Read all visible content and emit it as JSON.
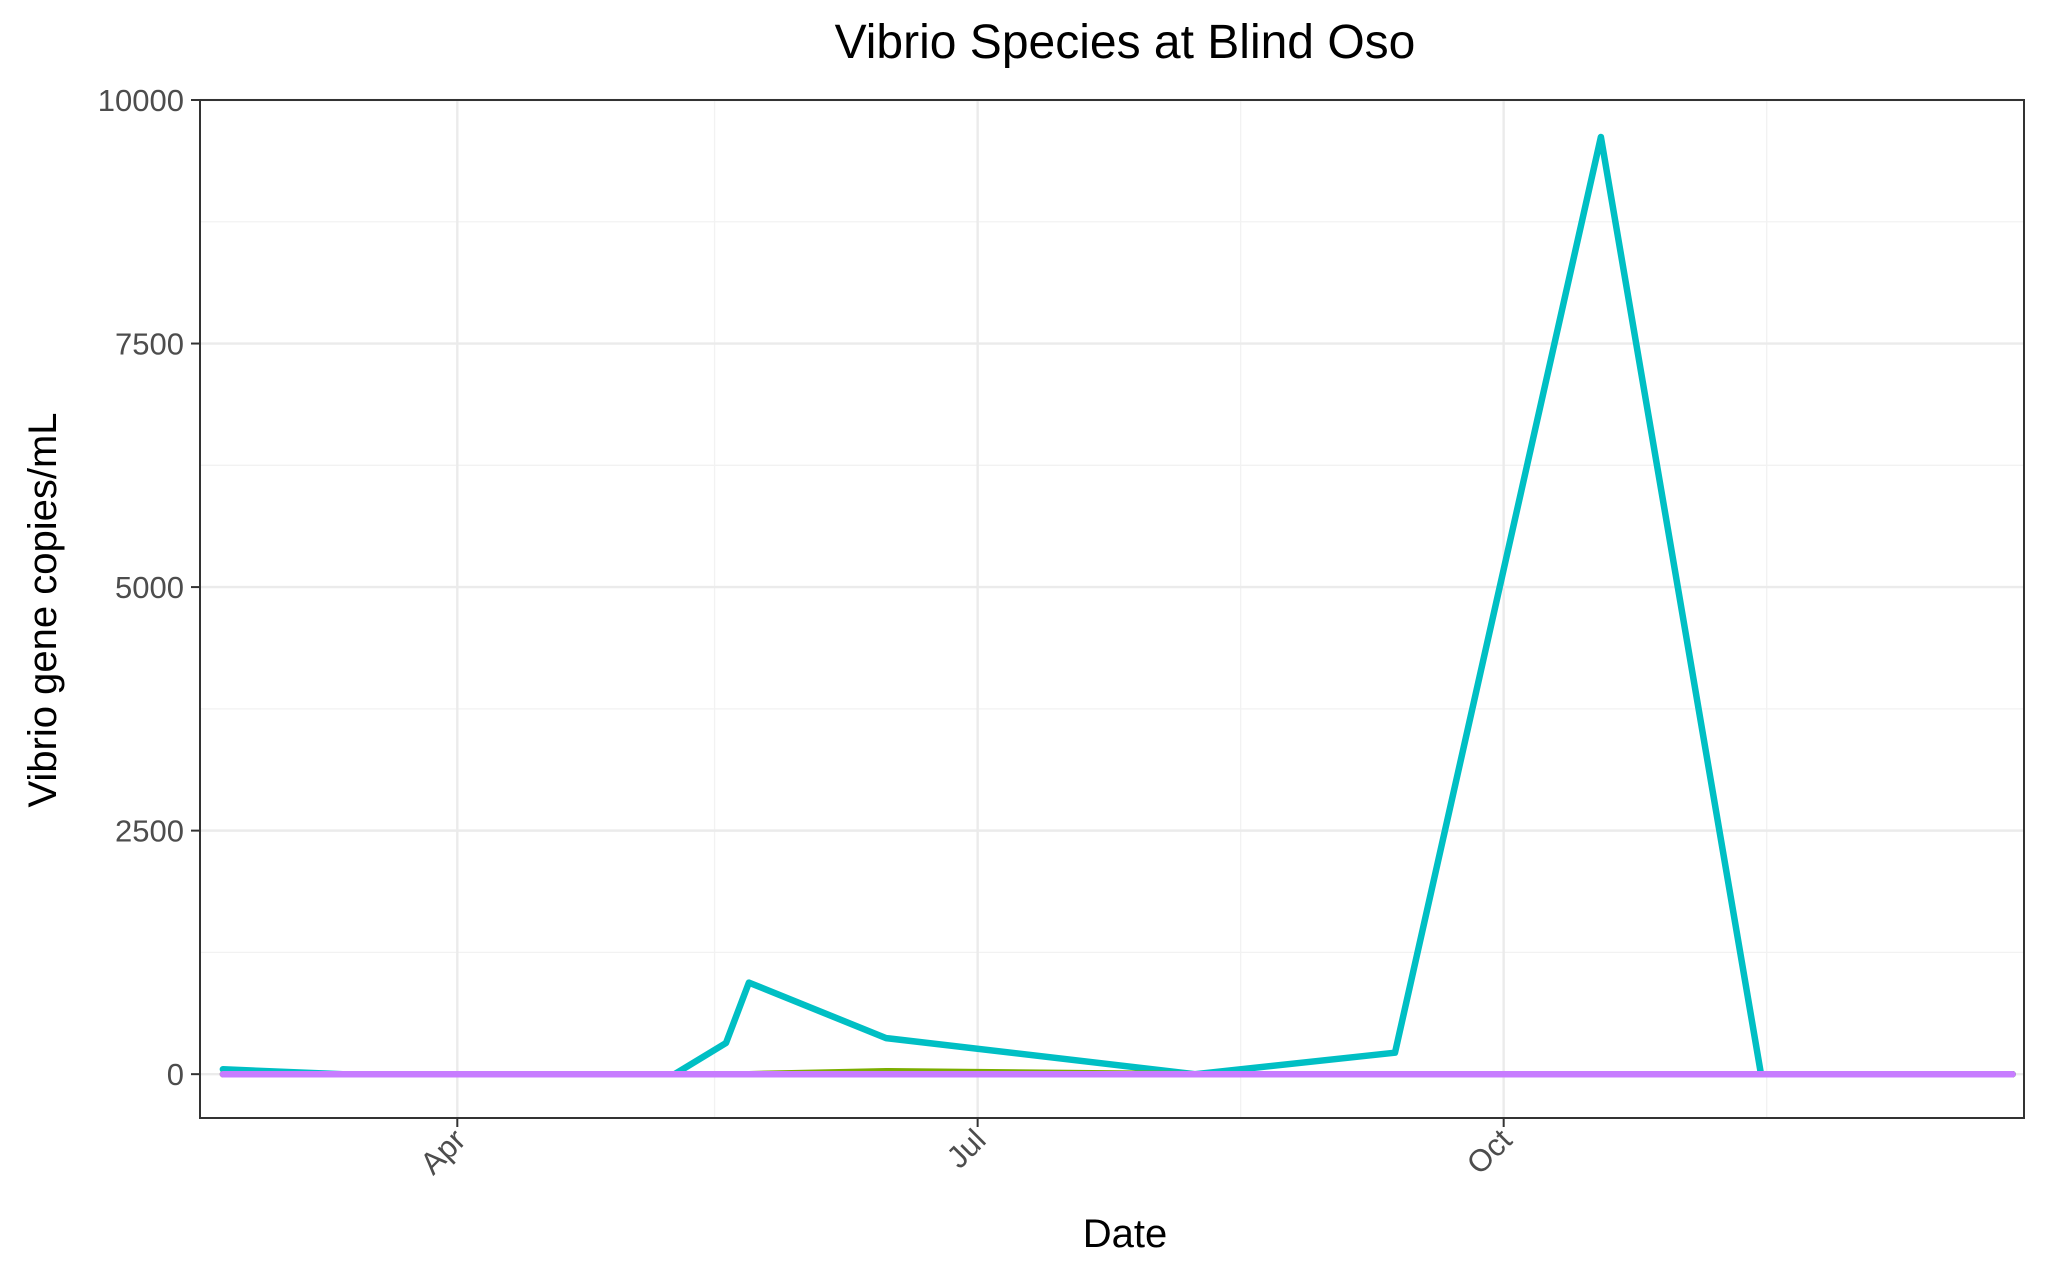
{
  "chart_data": {
    "type": "line",
    "title": "Vibrio Species at Blind Oso",
    "xlabel": "Date",
    "ylabel": "Vibrio gene copies/mL",
    "x_type": "date",
    "xlim": [
      "2023-02-15",
      "2023-12-31"
    ],
    "ylim": [
      -450,
      10000
    ],
    "x_ticks": [
      {
        "date": "2023-04-01",
        "label": "Apr"
      },
      {
        "date": "2023-07-01",
        "label": "Jul"
      },
      {
        "date": "2023-10-01",
        "label": "Oct"
      }
    ],
    "x_minor": [
      "2023-02-15",
      "2023-05-16",
      "2023-08-16",
      "2023-11-16"
    ],
    "y_ticks": [
      0,
      2500,
      5000,
      7500,
      10000
    ],
    "y_tick_labels": [
      "0",
      "2500",
      "5000",
      "7500",
      "10000"
    ],
    "y_minor": [
      1250,
      3750,
      6250,
      8750
    ],
    "grid": true,
    "legend": "none",
    "series": [
      {
        "color": "#00BFC4",
        "points": [
          {
            "x": "2023-02-19",
            "y": 50
          },
          {
            "x": "2023-03-12",
            "y": 0
          },
          {
            "x": "2023-05-09",
            "y": 0
          },
          {
            "x": "2023-05-18",
            "y": 320
          },
          {
            "x": "2023-05-22",
            "y": 940
          },
          {
            "x": "2023-06-15",
            "y": 370
          },
          {
            "x": "2023-08-08",
            "y": 0
          },
          {
            "x": "2023-09-12",
            "y": 220
          },
          {
            "x": "2023-10-18",
            "y": 9620
          },
          {
            "x": "2023-11-15",
            "y": 0
          },
          {
            "x": "2023-12-29",
            "y": 0
          }
        ]
      },
      {
        "color": "#7CAE00",
        "points": [
          {
            "x": "2023-02-19",
            "y": 0
          },
          {
            "x": "2023-05-22",
            "y": 0
          },
          {
            "x": "2023-06-15",
            "y": 30
          },
          {
            "x": "2023-08-08",
            "y": 0
          },
          {
            "x": "2023-12-29",
            "y": 0
          }
        ]
      },
      {
        "color": "#C77CFF",
        "points": [
          {
            "x": "2023-02-19",
            "y": 0
          },
          {
            "x": "2023-12-29",
            "y": 0
          }
        ]
      }
    ]
  }
}
